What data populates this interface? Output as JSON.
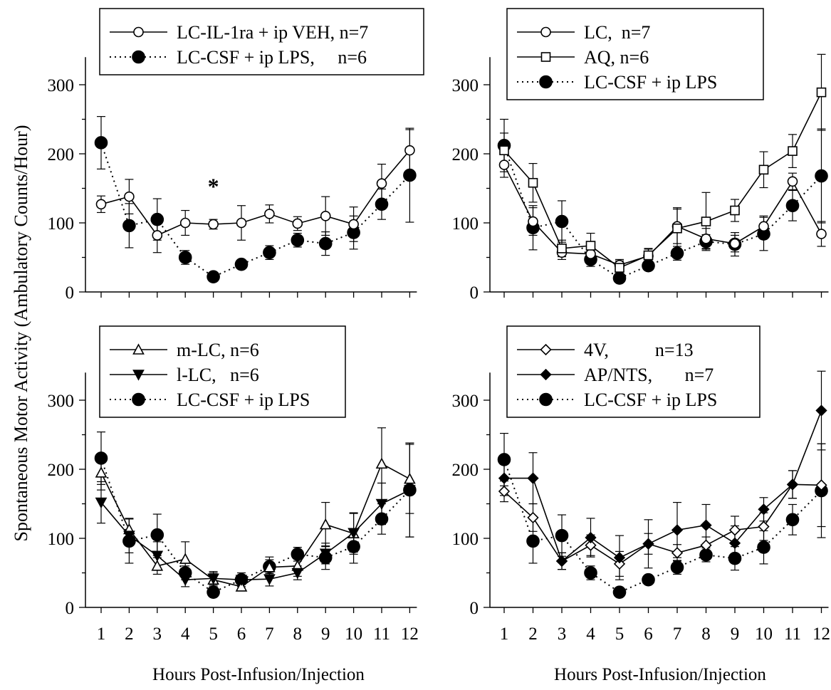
{
  "figure": {
    "ylabel": "Spontaneous Motor Activity (Ambulatory Counts/Hour)",
    "xlabel_left": "Hours Post-Infusion/Injection",
    "xlabel_right": "Hours Post-Infusion/Injection"
  },
  "chart_data": [
    {
      "type": "line",
      "panel": "top-left",
      "x": [
        1,
        2,
        3,
        4,
        5,
        6,
        7,
        8,
        9,
        10,
        11,
        12
      ],
      "ylim": [
        0,
        340
      ],
      "yticks": [
        0,
        100,
        200,
        300
      ],
      "xticks_labeled": false,
      "legend": "top",
      "annotation": "*",
      "annotation_x": 5,
      "series": [
        {
          "name": "LC-IL-1ra + ip VEH, n=7",
          "marker": "open-circle",
          "style": "solid",
          "values": [
            127,
            138,
            82,
            100,
            98,
            100,
            113,
            99,
            110,
            98,
            157,
            205
          ],
          "errors": [
            12,
            25,
            25,
            18,
            7,
            25,
            13,
            10,
            28,
            25,
            28,
            30
          ]
        },
        {
          "name": "LC-CSF + ip LPS,     n=6",
          "marker": "filled-circle",
          "style": "dotted",
          "values": [
            216,
            96,
            105,
            50,
            22,
            40,
            57,
            75,
            70,
            86,
            127,
            169
          ],
          "errors": [
            38,
            32,
            30,
            10,
            6,
            6,
            10,
            10,
            17,
            24,
            22,
            68
          ]
        }
      ]
    },
    {
      "type": "line",
      "panel": "top-right",
      "x": [
        1,
        2,
        3,
        4,
        5,
        6,
        7,
        8,
        9,
        10,
        11,
        12
      ],
      "ylim": [
        0,
        340
      ],
      "yticks": [
        0,
        100,
        200,
        300
      ],
      "xticks_labeled": false,
      "legend": "top",
      "series": [
        {
          "name": "LC,  n=7",
          "marker": "open-circle",
          "style": "solid",
          "values": [
            184,
            102,
            57,
            55,
            39,
            52,
            95,
            77,
            70,
            95,
            160,
            84
          ],
          "errors": [
            18,
            20,
            10,
            10,
            8,
            10,
            25,
            15,
            12,
            15,
            12,
            18
          ]
        },
        {
          "name": "AQ, n=6",
          "marker": "open-square",
          "style": "solid",
          "values": [
            205,
            158,
            63,
            67,
            35,
            53,
            92,
            102,
            118,
            177,
            204,
            289
          ],
          "errors": [
            25,
            28,
            12,
            18,
            10,
            10,
            30,
            42,
            16,
            26,
            24,
            55
          ]
        },
        {
          "name": "LC-CSF + ip LPS",
          "marker": "filled-circle",
          "style": "dotted",
          "values": [
            212,
            93,
            102,
            47,
            20,
            38,
            56,
            73,
            69,
            84,
            125,
            168
          ],
          "errors": [
            38,
            32,
            30,
            10,
            6,
            6,
            10,
            10,
            17,
            24,
            22,
            68
          ]
        }
      ]
    },
    {
      "type": "line",
      "panel": "bottom-left",
      "x": [
        1,
        2,
        3,
        4,
        5,
        6,
        7,
        8,
        9,
        10,
        11,
        12
      ],
      "ylim": [
        0,
        340
      ],
      "yticks": [
        0,
        100,
        200,
        300
      ],
      "xticks_labeled": true,
      "legend": "top",
      "series": [
        {
          "name": "m-LC, n=6",
          "marker": "open-triangle-up",
          "style": "solid",
          "values": [
            195,
            113,
            60,
            70,
            40,
            30,
            58,
            60,
            120,
            107,
            208,
            186
          ],
          "errors": [
            25,
            15,
            12,
            25,
            10,
            6,
            15,
            15,
            32,
            30,
            52,
            50
          ]
        },
        {
          "name": "l-LC,   n=6",
          "marker": "filled-triangle-down",
          "style": "solid",
          "values": [
            152,
            104,
            75,
            40,
            42,
            40,
            41,
            50,
            78,
            108,
            150,
            170
          ],
          "errors": [
            30,
            25,
            20,
            10,
            10,
            10,
            10,
            10,
            15,
            28,
            30,
            68
          ]
        },
        {
          "name": "LC-CSF + ip LPS",
          "marker": "filled-circle",
          "style": "dotted",
          "values": [
            216,
            96,
            105,
            50,
            22,
            40,
            59,
            77,
            72,
            88,
            128,
            170
          ],
          "errors": [
            38,
            32,
            30,
            10,
            6,
            6,
            10,
            10,
            17,
            24,
            22,
            68
          ]
        }
      ]
    },
    {
      "type": "line",
      "panel": "bottom-right",
      "x": [
        1,
        2,
        3,
        4,
        5,
        6,
        7,
        8,
        9,
        10,
        11,
        12
      ],
      "ylim": [
        0,
        340
      ],
      "yticks": [
        0,
        100,
        200,
        300
      ],
      "xticks_labeled": true,
      "legend": "top",
      "series": [
        {
          "name": "4V,          n=13",
          "marker": "open-diamond",
          "style": "solid",
          "values": [
            168,
            130,
            67,
            90,
            63,
            92,
            79,
            90,
            112,
            117,
            178,
            177
          ],
          "errors": [
            15,
            20,
            12,
            15,
            18,
            15,
            12,
            12,
            20,
            20,
            20,
            60
          ]
        },
        {
          "name": "AP/NTS,       n=7",
          "marker": "filled-diamond",
          "style": "solid",
          "values": [
            187,
            187,
            67,
            101,
            72,
            92,
            112,
            119,
            93,
            142,
            178,
            285
          ],
          "errors": [
            25,
            37,
            12,
            28,
            32,
            35,
            40,
            30,
            25,
            17,
            20,
            57
          ]
        },
        {
          "name": "LC-CSF + ip LPS",
          "marker": "filled-circle",
          "style": "dotted",
          "values": [
            214,
            96,
            104,
            50,
            22,
            40,
            58,
            76,
            71,
            87,
            127,
            169
          ],
          "errors": [
            38,
            32,
            30,
            10,
            6,
            6,
            10,
            10,
            17,
            24,
            22,
            68
          ]
        }
      ]
    }
  ]
}
